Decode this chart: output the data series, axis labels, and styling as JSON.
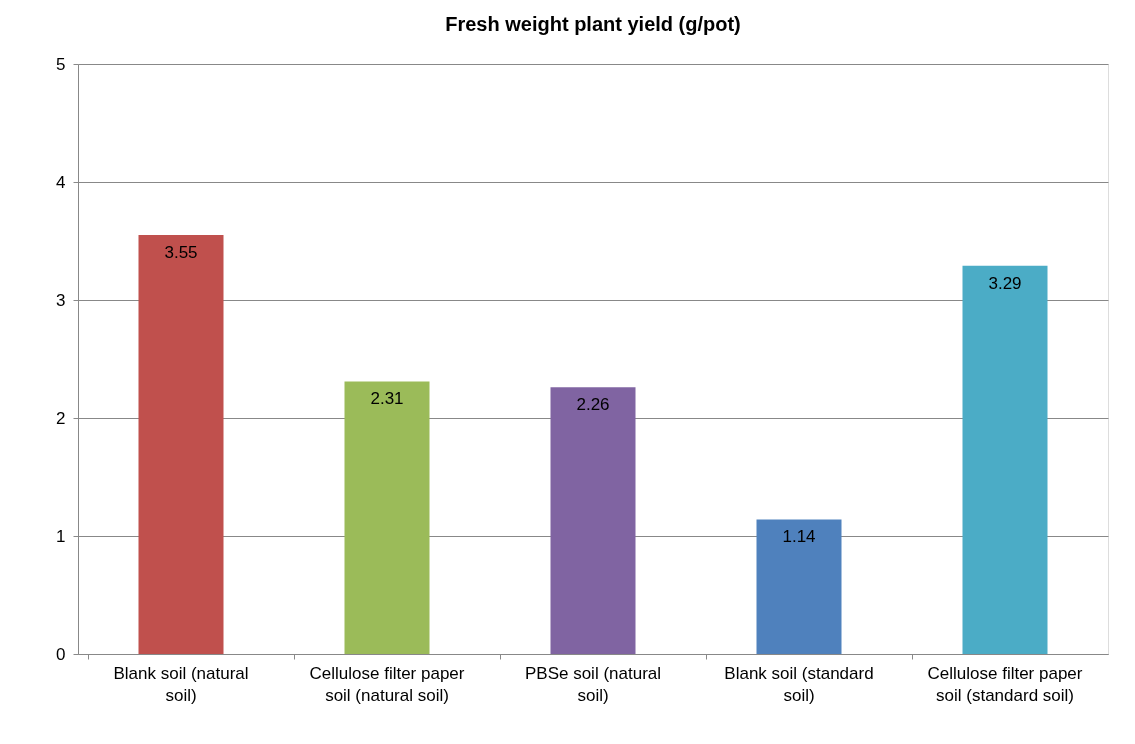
{
  "chart_data": {
    "type": "bar",
    "title": "Fresh weight plant yield (g/pot)",
    "categories": [
      "Blank soil (natural soil)",
      "Cellulose filter paper soil (natural soil)",
      "PBSe soil (natural soil)",
      "Blank soil (standard soil)",
      "Cellulose filter paper soil (standard soil)"
    ],
    "values": [
      3.55,
      2.31,
      2.26,
      1.14,
      3.29
    ],
    "colors": [
      "#c0504d",
      "#9bbb59",
      "#8064a2",
      "#4f81bd",
      "#4bacc6"
    ],
    "ylim": [
      0,
      5
    ],
    "yticks": [
      0,
      1,
      2,
      3,
      4,
      5
    ],
    "grid": "y",
    "data_labels": true
  }
}
